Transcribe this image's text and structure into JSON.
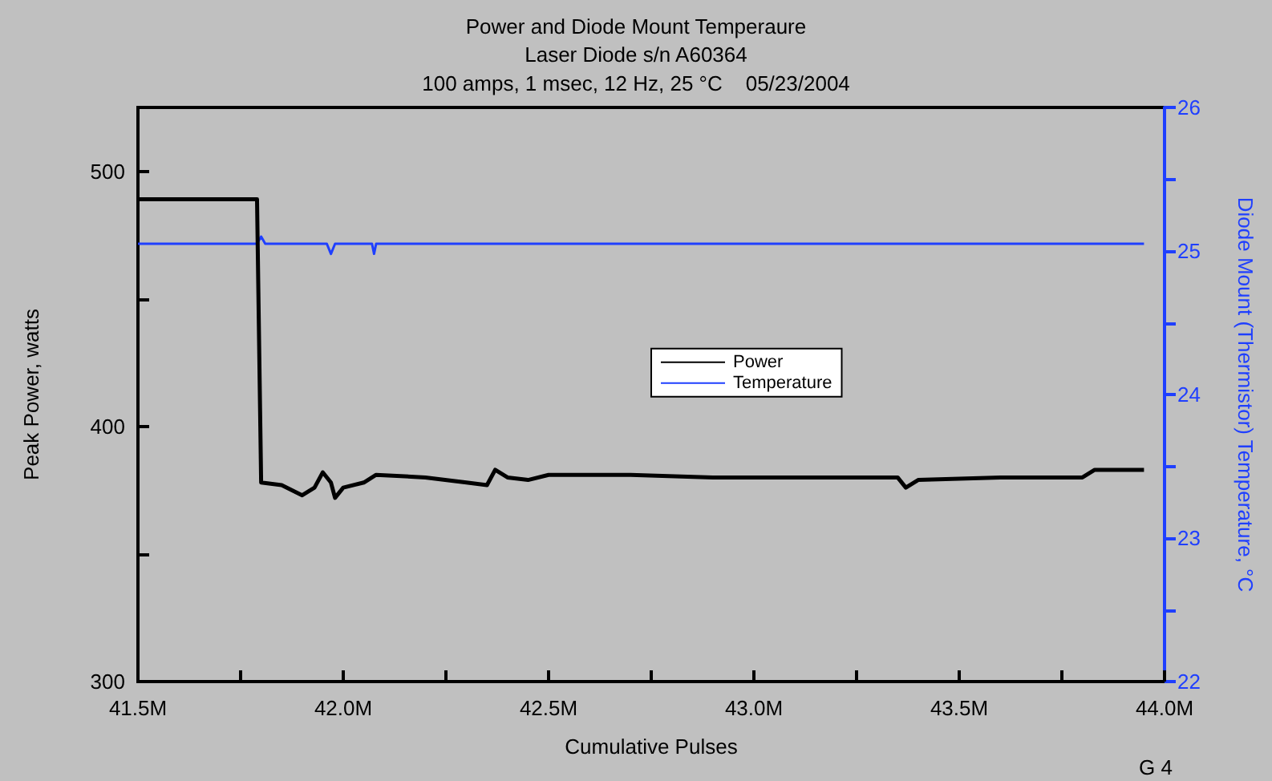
{
  "chart_data": {
    "type": "line",
    "title": "Power and Diode Mount Temperaure",
    "subtitle": "Laser Diode s/n A60364\n100 amps, 1 msec, 12 Hz, 25 °C    05/23/2004",
    "xlabel": "Cumulative Pulses",
    "ylabel": "Peak Power, watts",
    "y2label": "Diode Mount (Thermistor) Temperature, °C",
    "series": [
      {
        "name": "Power",
        "color": "#000000",
        "x": [
          41500000,
          41790000,
          41800000,
          41850000,
          41900000,
          41930000,
          41950000,
          41970000,
          41980000,
          42000000,
          42050000,
          42080000,
          42200000,
          42300000,
          42350000,
          42370000,
          42400000,
          42450000,
          42500000,
          42700000,
          42900000,
          43100000,
          43300000,
          43350000,
          43370000,
          43400000,
          43600000,
          43800000,
          43830000,
          43950000
        ],
        "values": [
          489,
          489,
          378,
          377,
          373,
          376,
          382,
          378,
          372,
          376,
          378,
          381,
          380,
          378,
          377,
          383,
          380,
          379,
          381,
          381,
          380,
          380,
          380,
          380,
          376,
          379,
          380,
          380,
          383,
          383
        ]
      },
      {
        "name": "Temperature",
        "color": "#1f3fff",
        "axis": "y2",
        "x": [
          41500000,
          41790000,
          41800000,
          41810000,
          41960000,
          41970000,
          41980000,
          42070000,
          42075000,
          42080000,
          43950000
        ],
        "values": [
          25.05,
          25.05,
          25.1,
          25.05,
          25.05,
          24.98,
          25.05,
          25.05,
          24.98,
          25.05,
          25.05
        ]
      }
    ],
    "xlim": [
      41500000,
      44000000
    ],
    "xticks": [
      {
        "value": 41500000,
        "label": "41.5M"
      },
      {
        "value": 41750000,
        "label": null
      },
      {
        "value": 42000000,
        "label": "42.0M"
      },
      {
        "value": 42250000,
        "label": null
      },
      {
        "value": 42500000,
        "label": "42.5M"
      },
      {
        "value": 42750000,
        "label": null
      },
      {
        "value": 43000000,
        "label": "43.0M"
      },
      {
        "value": 43250000,
        "label": null
      },
      {
        "value": 43500000,
        "label": "43.5M"
      },
      {
        "value": 43750000,
        "label": null
      },
      {
        "value": 44000000,
        "label": "44.0M"
      }
    ],
    "ylim": [
      300,
      525
    ],
    "yticks": [
      300,
      {
        "value": 350,
        "label": null
      },
      400,
      {
        "value": 450,
        "label": null
      },
      500
    ],
    "y2lim": [
      22,
      26
    ],
    "y2ticks": [
      22,
      {
        "value": 22.5,
        "label": null
      },
      23,
      {
        "value": 23.5,
        "label": null
      },
      24,
      {
        "value": 24.5,
        "label": null
      },
      25,
      {
        "value": 25.5,
        "label": null
      },
      26
    ],
    "legend": "center",
    "annotations": [
      "G 4"
    ]
  }
}
